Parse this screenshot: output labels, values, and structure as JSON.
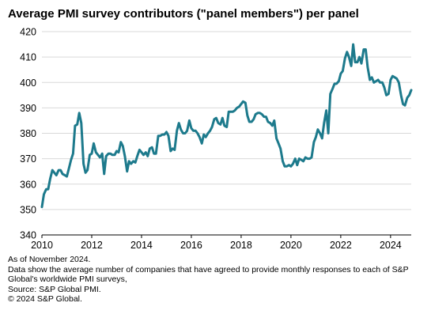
{
  "chart_data": {
    "type": "line",
    "title": "Average PMI survey contributors (\"panel members\") per panel",
    "xlabel": "",
    "ylabel": "",
    "xlim": [
      2010,
      2024.83
    ],
    "ylim": [
      340,
      420
    ],
    "yticks": [
      340,
      350,
      360,
      370,
      380,
      390,
      400,
      410,
      420
    ],
    "xticks": [
      "2010",
      "2012",
      "2014",
      "2016",
      "2018",
      "2020",
      "2022",
      "2024"
    ],
    "grid": "horizontal",
    "legend": "none",
    "line_color": "#1d7a8c",
    "series": [
      {
        "values": [
          [
            2010.0,
            351.0
          ],
          [
            2010.08,
            356.0
          ],
          [
            2010.17,
            358.0
          ],
          [
            2010.25,
            358.0
          ],
          [
            2010.33,
            362.0
          ],
          [
            2010.42,
            365.5
          ],
          [
            2010.5,
            364.5
          ],
          [
            2010.58,
            363.5
          ],
          [
            2010.67,
            365.5
          ],
          [
            2010.75,
            365.5
          ],
          [
            2010.83,
            364.0
          ],
          [
            2010.92,
            363.5
          ],
          [
            2011.0,
            363.0
          ],
          [
            2011.08,
            366.0
          ],
          [
            2011.17,
            369.5
          ],
          [
            2011.25,
            372.0
          ],
          [
            2011.33,
            383.0
          ],
          [
            2011.42,
            383.5
          ],
          [
            2011.5,
            388.0
          ],
          [
            2011.58,
            384.0
          ],
          [
            2011.67,
            368.0
          ],
          [
            2011.75,
            364.5
          ],
          [
            2011.83,
            365.5
          ],
          [
            2011.92,
            371.5
          ],
          [
            2012.0,
            372.0
          ],
          [
            2012.08,
            376.0
          ],
          [
            2012.17,
            372.5
          ],
          [
            2012.25,
            371.5
          ],
          [
            2012.33,
            370.5
          ],
          [
            2012.42,
            372.0
          ],
          [
            2012.5,
            364.0
          ],
          [
            2012.58,
            371.0
          ],
          [
            2012.67,
            372.0
          ],
          [
            2012.75,
            372.0
          ],
          [
            2012.83,
            371.5
          ],
          [
            2012.92,
            371.5
          ],
          [
            2013.0,
            373.0
          ],
          [
            2013.08,
            372.5
          ],
          [
            2013.17,
            376.5
          ],
          [
            2013.25,
            375.0
          ],
          [
            2013.33,
            371.0
          ],
          [
            2013.42,
            365.0
          ],
          [
            2013.5,
            369.0
          ],
          [
            2013.58,
            368.0
          ],
          [
            2013.67,
            369.0
          ],
          [
            2013.75,
            368.5
          ],
          [
            2013.83,
            371.0
          ],
          [
            2013.92,
            373.5
          ],
          [
            2014.0,
            372.5
          ],
          [
            2014.08,
            371.5
          ],
          [
            2014.17,
            372.5
          ],
          [
            2014.25,
            371.0
          ],
          [
            2014.33,
            374.0
          ],
          [
            2014.42,
            374.5
          ],
          [
            2014.5,
            372.0
          ],
          [
            2014.58,
            372.0
          ],
          [
            2014.67,
            379.0
          ],
          [
            2014.75,
            379.0
          ],
          [
            2014.83,
            379.5
          ],
          [
            2014.92,
            379.5
          ],
          [
            2015.0,
            380.5
          ],
          [
            2015.08,
            379.0
          ],
          [
            2015.17,
            373.0
          ],
          [
            2015.25,
            374.0
          ],
          [
            2015.33,
            373.5
          ],
          [
            2015.42,
            381.0
          ],
          [
            2015.5,
            384.0
          ],
          [
            2015.58,
            381.5
          ],
          [
            2015.67,
            380.0
          ],
          [
            2015.75,
            380.0
          ],
          [
            2015.83,
            381.0
          ],
          [
            2015.92,
            385.0
          ],
          [
            2016.0,
            382.0
          ],
          [
            2016.08,
            381.0
          ],
          [
            2016.17,
            381.0
          ],
          [
            2016.25,
            380.0
          ],
          [
            2016.33,
            378.5
          ],
          [
            2016.42,
            376.0
          ],
          [
            2016.5,
            379.5
          ],
          [
            2016.58,
            378.5
          ],
          [
            2016.67,
            380.0
          ],
          [
            2016.75,
            381.0
          ],
          [
            2016.83,
            382.5
          ],
          [
            2016.92,
            385.5
          ],
          [
            2017.0,
            386.0
          ],
          [
            2017.08,
            384.0
          ],
          [
            2017.17,
            383.5
          ],
          [
            2017.25,
            386.0
          ],
          [
            2017.33,
            383.0
          ],
          [
            2017.42,
            382.5
          ],
          [
            2017.5,
            388.5
          ],
          [
            2017.58,
            388.5
          ],
          [
            2017.67,
            388.5
          ],
          [
            2017.75,
            389.0
          ],
          [
            2017.83,
            390.0
          ],
          [
            2017.92,
            390.5
          ],
          [
            2018.0,
            391.5
          ],
          [
            2018.08,
            392.5
          ],
          [
            2018.17,
            392.0
          ],
          [
            2018.25,
            387.0
          ],
          [
            2018.33,
            384.5
          ],
          [
            2018.42,
            384.5
          ],
          [
            2018.5,
            385.5
          ],
          [
            2018.58,
            387.5
          ],
          [
            2018.67,
            388.0
          ],
          [
            2018.75,
            388.0
          ],
          [
            2018.83,
            387.5
          ],
          [
            2018.92,
            386.5
          ],
          [
            2019.0,
            386.5
          ],
          [
            2019.08,
            384.5
          ],
          [
            2019.17,
            384.0
          ],
          [
            2019.25,
            383.0
          ],
          [
            2019.33,
            385.0
          ],
          [
            2019.42,
            378.0
          ],
          [
            2019.5,
            376.0
          ],
          [
            2019.58,
            374.0
          ],
          [
            2019.67,
            369.0
          ],
          [
            2019.75,
            367.0
          ],
          [
            2019.83,
            367.0
          ],
          [
            2019.92,
            367.5
          ],
          [
            2020.0,
            367.0
          ],
          [
            2020.08,
            368.0
          ],
          [
            2020.17,
            370.0
          ],
          [
            2020.25,
            367.5
          ],
          [
            2020.33,
            370.0
          ],
          [
            2020.42,
            369.5
          ],
          [
            2020.5,
            369.0
          ],
          [
            2020.58,
            370.5
          ],
          [
            2020.67,
            370.0
          ],
          [
            2020.75,
            370.0
          ],
          [
            2020.83,
            370.5
          ],
          [
            2020.92,
            376.5
          ],
          [
            2021.0,
            378.5
          ],
          [
            2021.08,
            381.5
          ],
          [
            2021.17,
            380.0
          ],
          [
            2021.25,
            378.0
          ],
          [
            2021.33,
            384.0
          ],
          [
            2021.42,
            389.0
          ],
          [
            2021.5,
            380.0
          ],
          [
            2021.58,
            395.5
          ],
          [
            2021.67,
            397.5
          ],
          [
            2021.75,
            399.5
          ],
          [
            2021.83,
            399.5
          ],
          [
            2021.92,
            400.5
          ],
          [
            2022.0,
            403.5
          ],
          [
            2022.08,
            404.5
          ],
          [
            2022.17,
            409.5
          ],
          [
            2022.25,
            412.0
          ],
          [
            2022.33,
            410.0
          ],
          [
            2022.42,
            406.5
          ],
          [
            2022.5,
            415.0
          ],
          [
            2022.58,
            408.0
          ],
          [
            2022.67,
            408.0
          ],
          [
            2022.75,
            410.0
          ],
          [
            2022.83,
            407.5
          ],
          [
            2022.92,
            413.0
          ],
          [
            2023.0,
            413.0
          ],
          [
            2023.08,
            406.0
          ],
          [
            2023.17,
            401.0
          ],
          [
            2023.25,
            402.0
          ],
          [
            2023.33,
            400.0
          ],
          [
            2023.42,
            400.5
          ],
          [
            2023.5,
            401.0
          ],
          [
            2023.58,
            400.0
          ],
          [
            2023.67,
            400.0
          ],
          [
            2023.75,
            398.0
          ],
          [
            2023.83,
            395.0
          ],
          [
            2023.92,
            395.5
          ],
          [
            2024.0,
            401.0
          ],
          [
            2024.08,
            402.5
          ],
          [
            2024.17,
            402.0
          ],
          [
            2024.25,
            401.5
          ],
          [
            2024.33,
            400.0
          ],
          [
            2024.42,
            395.0
          ],
          [
            2024.5,
            391.5
          ],
          [
            2024.58,
            391.0
          ],
          [
            2024.67,
            394.0
          ],
          [
            2024.75,
            395.0
          ],
          [
            2024.83,
            397.0
          ]
        ]
      }
    ]
  },
  "notes": {
    "as_of": "As of November 2024.",
    "description": "Data show the average number of companies that have agreed to provide monthly responses to each of S&P Global's worldwide PMI surveys,",
    "source": "Source: S&P Global PMI.",
    "copyright": "© 2024 S&P Global."
  }
}
